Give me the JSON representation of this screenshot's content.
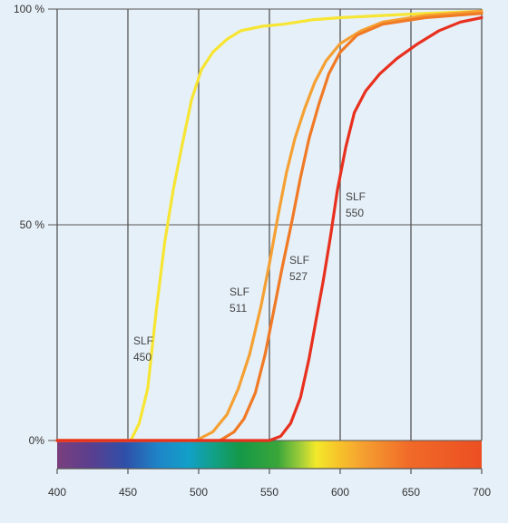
{
  "chart_data": {
    "type": "line",
    "title": "",
    "xlabel": "",
    "ylabel": "",
    "xlim": [
      400,
      700
    ],
    "ylim": [
      0,
      100
    ],
    "x_ticks": [
      400,
      450,
      500,
      550,
      600,
      650,
      700
    ],
    "x_tick_labels": [
      "400",
      "450",
      "500",
      "550",
      "600",
      "650",
      "700"
    ],
    "y_ticks": [
      0,
      50,
      100
    ],
    "y_tick_labels": [
      "0%",
      "50 %",
      "100 %"
    ],
    "grid": true,
    "spectrum_bar": true,
    "series": [
      {
        "name": "SLF 450",
        "label_lines": [
          "SLF",
          "450"
        ],
        "color": "#f7e533",
        "points": [
          [
            400,
            0
          ],
          [
            452,
            0
          ],
          [
            458,
            4
          ],
          [
            464,
            12
          ],
          [
            470,
            30
          ],
          [
            476,
            46
          ],
          [
            482,
            58
          ],
          [
            488,
            68
          ],
          [
            495,
            79
          ],
          [
            502,
            86
          ],
          [
            510,
            90
          ],
          [
            520,
            93
          ],
          [
            530,
            95
          ],
          [
            545,
            96
          ],
          [
            560,
            96.5
          ],
          [
            580,
            97.5
          ],
          [
            600,
            98
          ],
          [
            630,
            98.5
          ],
          [
            660,
            99
          ],
          [
            700,
            99.5
          ]
        ]
      },
      {
        "name": "SLF 511",
        "label_lines": [
          "SLF",
          "511"
        ],
        "color": "#f5a033",
        "points": [
          [
            400,
            0
          ],
          [
            498,
            0
          ],
          [
            510,
            2
          ],
          [
            520,
            6
          ],
          [
            528,
            12
          ],
          [
            536,
            20
          ],
          [
            544,
            31
          ],
          [
            550,
            41
          ],
          [
            556,
            52
          ],
          [
            562,
            62
          ],
          [
            568,
            70
          ],
          [
            575,
            77
          ],
          [
            582,
            83
          ],
          [
            590,
            88
          ],
          [
            600,
            92
          ],
          [
            615,
            95
          ],
          [
            630,
            97
          ],
          [
            660,
            98.5
          ],
          [
            700,
            99.5
          ]
        ]
      },
      {
        "name": "SLF 527",
        "label_lines": [
          "SLF",
          "527"
        ],
        "color": "#f07a25",
        "points": [
          [
            400,
            0
          ],
          [
            515,
            0
          ],
          [
            525,
            2
          ],
          [
            532,
            5
          ],
          [
            540,
            11
          ],
          [
            547,
            20
          ],
          [
            553,
            30
          ],
          [
            559,
            40
          ],
          [
            566,
            51
          ],
          [
            572,
            61
          ],
          [
            578,
            70
          ],
          [
            585,
            78
          ],
          [
            592,
            85
          ],
          [
            600,
            90
          ],
          [
            612,
            94
          ],
          [
            630,
            96.5
          ],
          [
            660,
            98
          ],
          [
            700,
            99
          ]
        ]
      },
      {
        "name": "SLF 550",
        "label_lines": [
          "SLF",
          "550"
        ],
        "color": "#e8301e",
        "points": [
          [
            400,
            0
          ],
          [
            550,
            0
          ],
          [
            558,
            1
          ],
          [
            565,
            4
          ],
          [
            572,
            10
          ],
          [
            578,
            19
          ],
          [
            583,
            28
          ],
          [
            588,
            37
          ],
          [
            593,
            47
          ],
          [
            598,
            58
          ],
          [
            604,
            68
          ],
          [
            610,
            76
          ],
          [
            618,
            81
          ],
          [
            628,
            85
          ],
          [
            640,
            88.5
          ],
          [
            655,
            92
          ],
          [
            670,
            95
          ],
          [
            685,
            97
          ],
          [
            700,
            98
          ]
        ]
      }
    ]
  }
}
